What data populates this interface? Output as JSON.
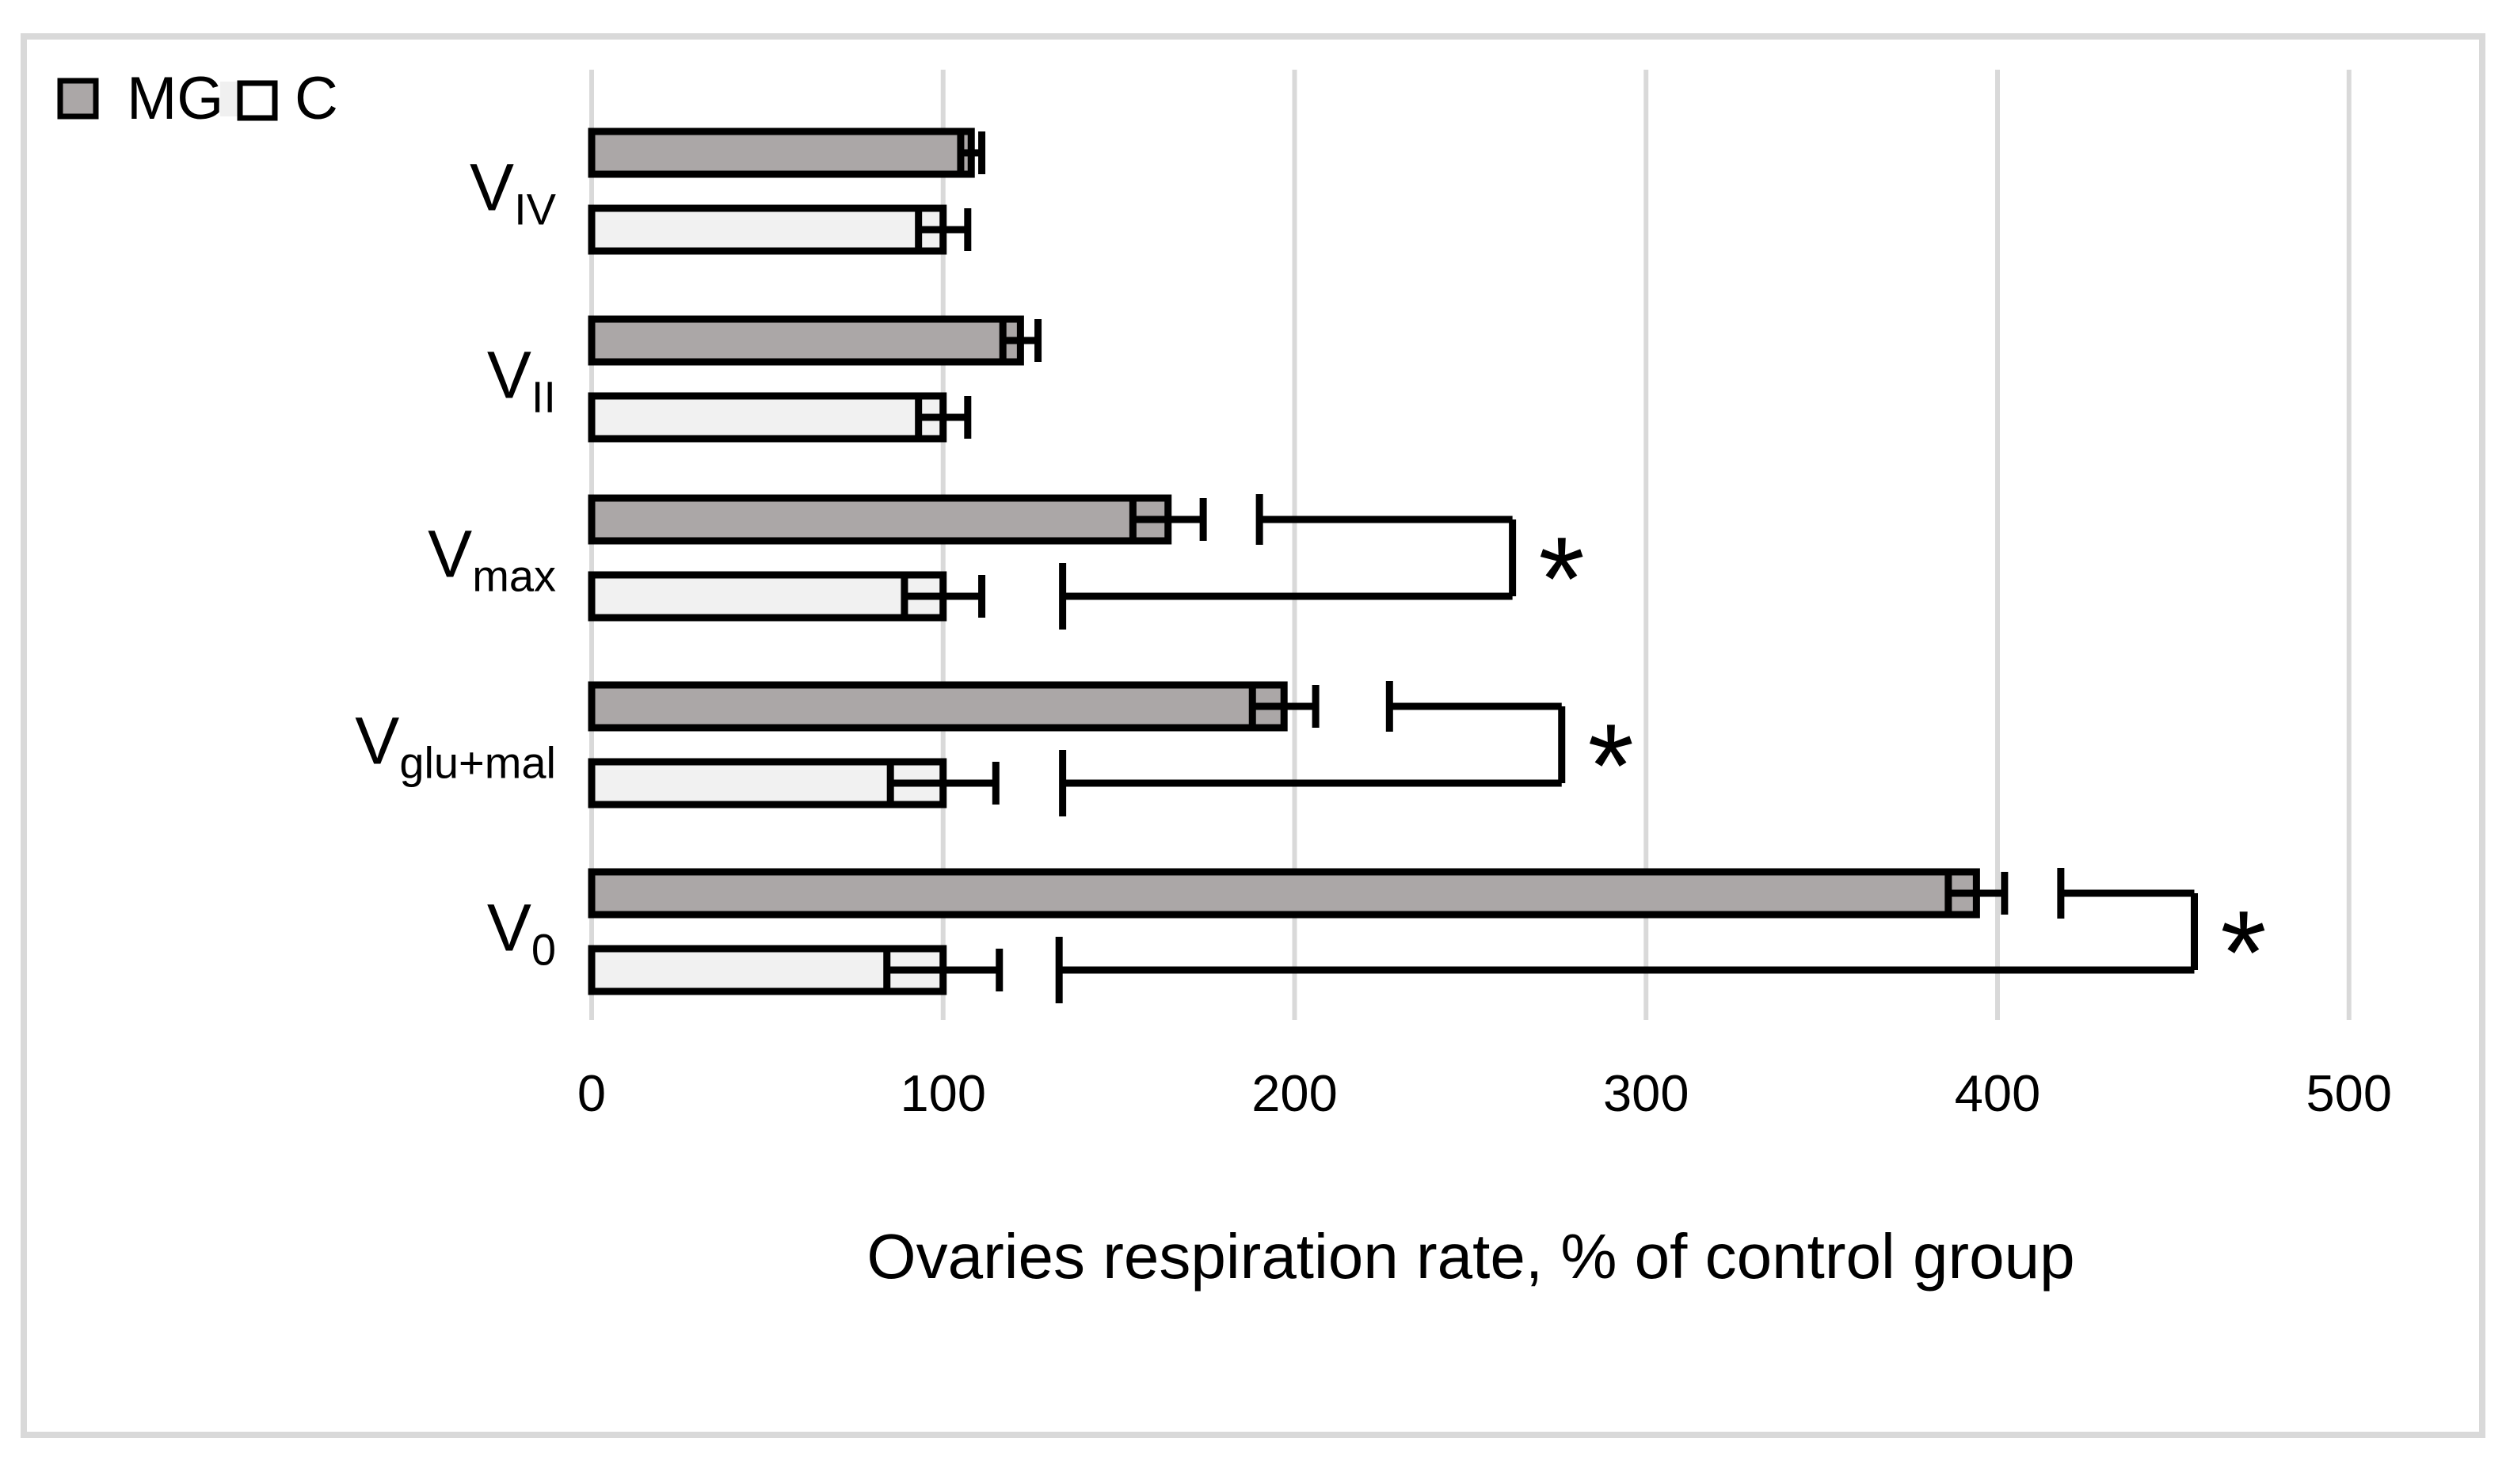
{
  "legend": {
    "items": [
      {
        "label": "MG",
        "swatch_color": "#aba7a7"
      },
      {
        "label": "C",
        "swatch_color": "#ffffff"
      }
    ]
  },
  "chart_data": {
    "type": "bar",
    "orientation": "horizontal",
    "title": "",
    "xlabel": "Ovaries respiration rate, % of control group",
    "ylabel": "",
    "xlim": [
      0,
      500
    ],
    "x_ticks": [
      0,
      100,
      200,
      300,
      400,
      500
    ],
    "grid": true,
    "legend_position": "top-left",
    "categories": [
      {
        "id": "V_IV",
        "main": "V",
        "sub": "IV"
      },
      {
        "id": "V_II",
        "main": "V",
        "sub": "II"
      },
      {
        "id": "V_max",
        "main": "V",
        "sub": "max"
      },
      {
        "id": "V_glu_mal",
        "main": "V",
        "sub": "glu+mal"
      },
      {
        "id": "V_0",
        "main": "V",
        "sub": "0"
      }
    ],
    "series": [
      {
        "name": "MG",
        "color": "#aba7a7",
        "values": [
          108,
          122,
          164,
          197,
          394
        ],
        "errors": [
          3,
          5,
          10,
          9,
          8
        ]
      },
      {
        "name": "C",
        "color": "#f1f1f1",
        "values": [
          100,
          100,
          100,
          100,
          100
        ],
        "errors": [
          7,
          7,
          11,
          15,
          16
        ]
      }
    ],
    "significance_markers": [
      {
        "category_id": "V_max",
        "symbol": "*"
      },
      {
        "category_id": "V_glu_mal",
        "symbol": "*"
      },
      {
        "category_id": "V_0",
        "symbol": "*"
      }
    ],
    "colors": {
      "bar_border": "#000000",
      "gridline": "#d9d9d9",
      "frame": "#d9d9d9",
      "background": "#ffffff",
      "text": "#000000"
    }
  }
}
